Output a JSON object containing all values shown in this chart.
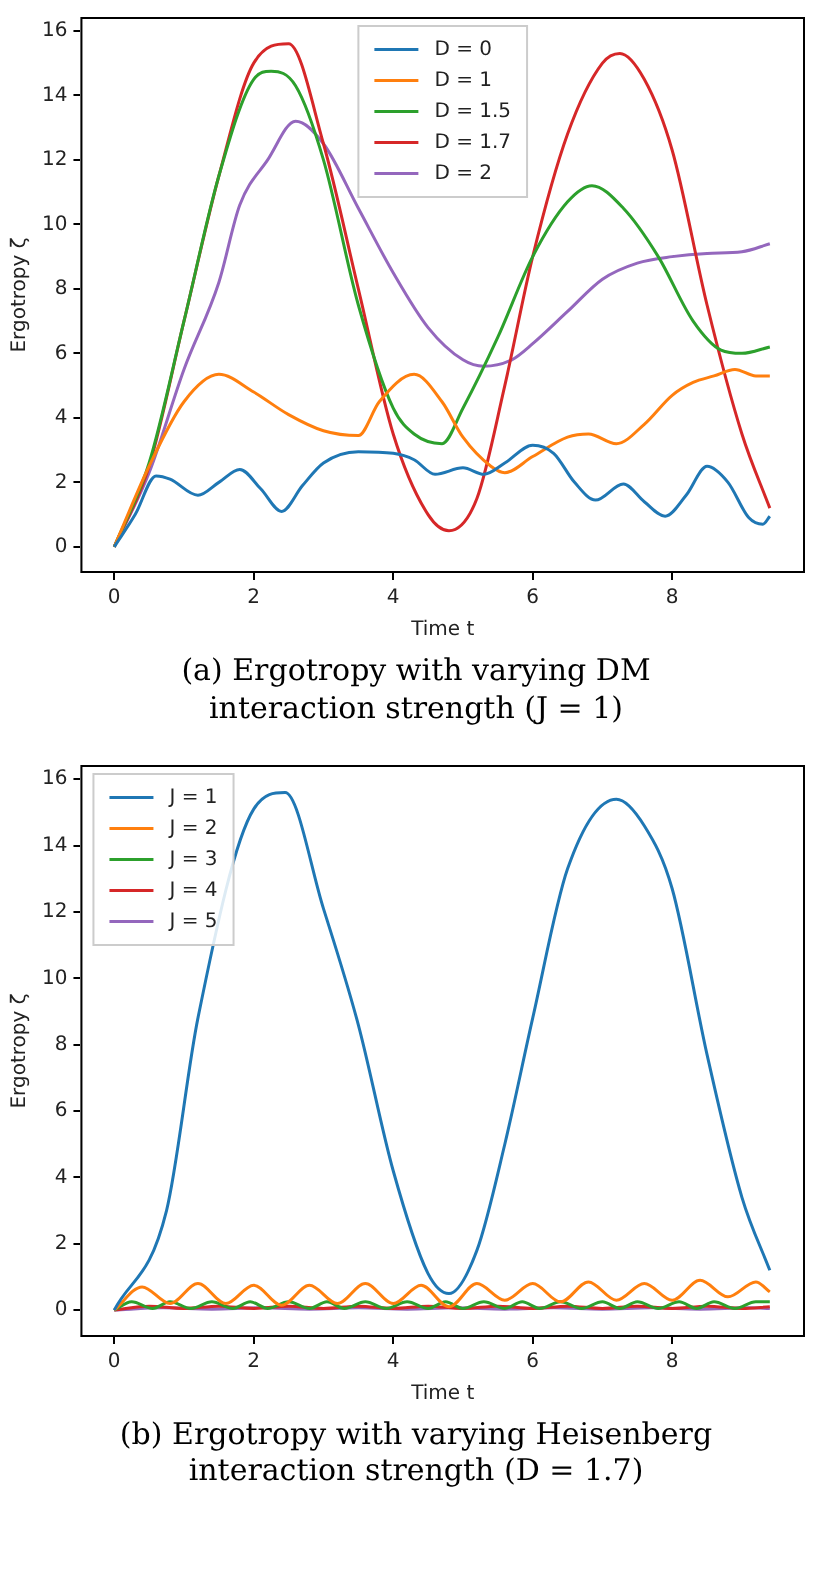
{
  "chart_data": [
    {
      "type": "line",
      "xlabel": "Time t",
      "ylabel": "Ergotropy ζ",
      "xlim": [
        -0.47,
        9.89
      ],
      "ylim": [
        -0.78,
        16.4
      ],
      "xticks": [
        0,
        2,
        4,
        6,
        8
      ],
      "yticks": [
        0,
        2,
        4,
        6,
        8,
        10,
        12,
        14,
        16
      ],
      "grid": false,
      "legend": "top",
      "annotations": [
        "(a) Ergotropy with varying DM interaction strength (J = 1)"
      ],
      "series": [
        {
          "name": "D = 0",
          "color": "#1f77b4",
          "x": [
            0,
            0.3,
            0.6,
            0.8,
            1.2,
            1.5,
            1.8,
            2.1,
            2.4,
            2.7,
            3,
            3.5,
            4,
            4.3,
            4.6,
            5,
            5.3,
            5.6,
            6,
            6.3,
            6.6,
            6.9,
            7.3,
            7.6,
            7.9,
            8.2,
            8.5,
            8.8,
            9.1,
            9.3,
            9.4
          ],
          "values": [
            0,
            1,
            2.2,
            2.1,
            1.6,
            2,
            2.4,
            1.8,
            1.1,
            1.9,
            2.6,
            2.95,
            2.9,
            2.7,
            2.25,
            2.45,
            2.25,
            2.6,
            3.15,
            2.9,
            2,
            1.45,
            1.95,
            1.4,
            0.95,
            1.6,
            2.5,
            2,
            0.9,
            0.7,
            0.95
          ]
        },
        {
          "name": "D = 1",
          "color": "#ff7f0e",
          "x": [
            0,
            0.5,
            1,
            1.5,
            2,
            2.5,
            3,
            3.5,
            3.8,
            4.3,
            4.7,
            5,
            5.4,
            5.6,
            6,
            6.5,
            6.8,
            7.2,
            7.6,
            8,
            8.3,
            8.6,
            8.9,
            9.2,
            9.4
          ],
          "values": [
            0,
            2.5,
            4.5,
            5.35,
            4.8,
            4.1,
            3.6,
            3.45,
            4.5,
            5.35,
            4.5,
            3.4,
            2.5,
            2.3,
            2.8,
            3.4,
            3.5,
            3.2,
            3.8,
            4.7,
            5.1,
            5.3,
            5.5,
            5.3,
            5.3
          ]
        },
        {
          "name": "D = 1.5",
          "color": "#2ca02c",
          "x": [
            0,
            0.5,
            1,
            1.5,
            2,
            2.25,
            2.6,
            3,
            3.5,
            4,
            4.3,
            4.7,
            5,
            5.5,
            6,
            6.5,
            6.85,
            7.3,
            7.8,
            8.3,
            8.7,
            9,
            9.4
          ],
          "values": [
            0,
            2.6,
            7,
            11.5,
            14.5,
            14.75,
            14.3,
            12,
            7.5,
            4.3,
            3.5,
            3.2,
            4.3,
            6.5,
            9,
            10.7,
            11.2,
            10.5,
            9,
            7,
            6.1,
            6,
            6.2
          ]
        },
        {
          "name": "D = 1.7",
          "color": "#d62728",
          "x": [
            0,
            0.5,
            1,
            1.5,
            2,
            2.5,
            3,
            3.5,
            4,
            4.5,
            4.8,
            5.2,
            5.6,
            6,
            6.5,
            7,
            7.25,
            7.6,
            8,
            8.5,
            9,
            9.4
          ],
          "values": [
            0,
            2.5,
            7,
            11.5,
            15,
            15.6,
            12.5,
            8,
            3.5,
            1,
            0.5,
            1.5,
            5,
            9,
            12.8,
            15,
            15.3,
            14.5,
            12.3,
            7.5,
            3.5,
            1.2
          ]
        },
        {
          "name": "D = 2",
          "color": "#9467bd",
          "x": [
            0,
            0.5,
            1,
            1.5,
            1.8,
            2.2,
            2.6,
            3,
            3.5,
            4,
            4.5,
            5,
            5.3,
            5.7,
            6,
            6.5,
            7,
            7.5,
            8,
            8.5,
            9,
            9.4
          ],
          "values": [
            0,
            2.3,
            5.5,
            8.2,
            10.6,
            12,
            13.2,
            12.5,
            10.5,
            8.5,
            6.8,
            5.8,
            5.6,
            5.8,
            6.3,
            7.3,
            8.3,
            8.8,
            9,
            9.1,
            9.15,
            9.4
          ]
        }
      ]
    },
    {
      "type": "line",
      "xlabel": "Time t",
      "ylabel": "Ergotropy ζ",
      "xlim": [
        -0.47,
        9.89
      ],
      "ylim": [
        -0.78,
        16.4
      ],
      "xticks": [
        0,
        2,
        4,
        6,
        8
      ],
      "yticks": [
        0,
        2,
        4,
        6,
        8,
        10,
        12,
        14,
        16
      ],
      "grid": false,
      "legend": "top left",
      "annotations": [
        "(b) Ergotropy with varying Heisenberg interaction strength (D = 1.7)"
      ],
      "series": [
        {
          "name": "J = 1",
          "color": "#1f77b4",
          "x": [
            0,
            0.75,
            1.2,
            2,
            2.45,
            3,
            3.5,
            4,
            4.5,
            4.8,
            5.2,
            5.6,
            6,
            6.5,
            7.2,
            7.6,
            8,
            8.5,
            9,
            9.4
          ],
          "values": [
            0,
            3,
            8.8,
            15.1,
            15.6,
            12.1,
            8.6,
            4.2,
            1.1,
            0.5,
            1.8,
            5,
            8.8,
            13.3,
            15.4,
            14.6,
            12.7,
            7.7,
            3.4,
            1.2
          ]
        },
        {
          "name": "J = 2",
          "color": "#ff7f0e",
          "x": [
            0,
            0.4,
            0.8,
            1.2,
            1.6,
            2,
            2.4,
            2.8,
            3.2,
            3.6,
            4,
            4.4,
            4.8,
            5.2,
            5.6,
            6,
            6.4,
            6.8,
            7.2,
            7.6,
            8,
            8.4,
            8.8,
            9.2,
            9.4
          ],
          "values": [
            0,
            0.7,
            0.2,
            0.8,
            0.2,
            0.75,
            0.15,
            0.75,
            0.2,
            0.8,
            0.2,
            0.75,
            0.1,
            0.8,
            0.3,
            0.8,
            0.25,
            0.85,
            0.3,
            0.8,
            0.3,
            0.9,
            0.4,
            0.85,
            0.55
          ]
        },
        {
          "name": "J = 3",
          "color": "#2ca02c",
          "x": [
            0,
            0.25,
            0.55,
            0.8,
            1.1,
            1.4,
            1.7,
            1.95,
            2.2,
            2.5,
            2.8,
            3.05,
            3.3,
            3.6,
            3.9,
            4.2,
            4.5,
            4.75,
            5,
            5.3,
            5.6,
            5.85,
            6.1,
            6.4,
            6.7,
            7,
            7.25,
            7.5,
            7.8,
            8.1,
            8.35,
            8.6,
            8.9,
            9.2,
            9.4
          ],
          "values": [
            0,
            0.25,
            0.05,
            0.25,
            0.05,
            0.25,
            0.05,
            0.25,
            0.05,
            0.25,
            0.05,
            0.25,
            0.05,
            0.25,
            0.05,
            0.25,
            0.05,
            0.25,
            0.05,
            0.25,
            0.05,
            0.25,
            0.05,
            0.25,
            0.05,
            0.25,
            0.05,
            0.25,
            0.05,
            0.25,
            0.05,
            0.25,
            0.05,
            0.25,
            0.25
          ]
        },
        {
          "name": "J = 4",
          "color": "#d62728",
          "x": [
            0,
            0.5,
            1,
            1.5,
            2,
            2.5,
            3,
            3.5,
            4,
            4.5,
            5,
            5.5,
            6,
            6.5,
            7,
            7.5,
            8,
            8.5,
            9,
            9.4
          ],
          "values": [
            0,
            0.12,
            0.05,
            0.12,
            0.05,
            0.12,
            0.05,
            0.12,
            0.05,
            0.12,
            0.05,
            0.12,
            0.05,
            0.12,
            0.05,
            0.12,
            0.05,
            0.12,
            0.05,
            0.1
          ]
        },
        {
          "name": "J = 5",
          "color": "#9467bd",
          "x": [
            0,
            0.7,
            1.4,
            2.1,
            2.8,
            3.5,
            4.2,
            4.9,
            5.6,
            6.3,
            7,
            7.7,
            8.4,
            9.1,
            9.4
          ],
          "values": [
            0,
            0.07,
            0.03,
            0.07,
            0.03,
            0.07,
            0.03,
            0.07,
            0.03,
            0.07,
            0.03,
            0.07,
            0.03,
            0.07,
            0.05
          ]
        }
      ]
    }
  ]
}
